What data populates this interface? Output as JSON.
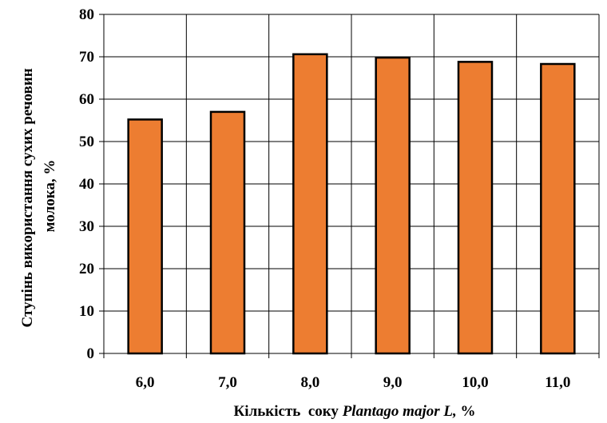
{
  "chart_data": {
    "type": "bar",
    "categories": [
      "6,0",
      "7,0",
      "8,0",
      "9,0",
      "10,0",
      "11,0"
    ],
    "values": [
      55.2,
      57.0,
      70.6,
      69.8,
      68.8,
      68.3
    ],
    "ylim": [
      0,
      80
    ],
    "yticks": [
      "0",
      "10",
      "20",
      "30",
      "40",
      "50",
      "60",
      "70",
      "80"
    ],
    "ylabel_line1": "Ступінь використання сухих речовин",
    "ylabel_line2": "молока, %",
    "xlabel_prefix": "Кількість  соку ",
    "xlabel_italic": "Plantago major L,",
    "xlabel_suffix": " %",
    "grid": true,
    "bar_color": "#ED7D31",
    "bar_edge_color": "#000000"
  }
}
